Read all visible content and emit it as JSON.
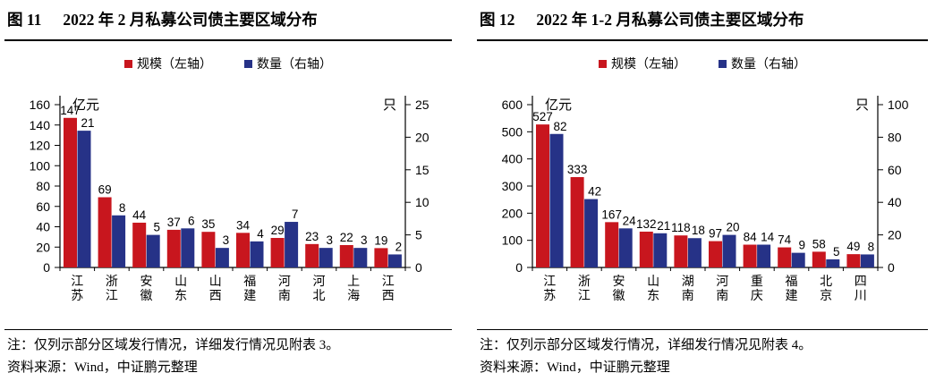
{
  "chart_data": [
    {
      "type": "bar",
      "fig_label": "图 11",
      "title": "2022 年 2 月私募公司债主要区域分布",
      "categories": [
        "江苏",
        "浙江",
        "安徽",
        "山东",
        "山西",
        "福建",
        "河南",
        "河北",
        "上海",
        "江西"
      ],
      "series": [
        {
          "name": "规模（左轴）",
          "axis": "left",
          "color": "#c8161e",
          "values": [
            147,
            69,
            44,
            37,
            35,
            34,
            29,
            23,
            22,
            19
          ]
        },
        {
          "name": "数量（右轴）",
          "axis": "right",
          "color": "#263287",
          "values": [
            21,
            8,
            5,
            6,
            3,
            4,
            7,
            3,
            3,
            2
          ]
        }
      ],
      "left_axis": {
        "unit": "亿元",
        "max": 160,
        "min": 0,
        "ticks": [
          0,
          20,
          40,
          60,
          80,
          100,
          120,
          140,
          160
        ]
      },
      "right_axis": {
        "unit": "只",
        "max": 25,
        "min": 0,
        "ticks": [
          0,
          5,
          10,
          15,
          20,
          25
        ]
      },
      "legend_position": "top-center",
      "grid": "off",
      "note": "注：仅列示部分区域发行情况，详细发行情况见附表 3。",
      "source": "资料来源：Wind，中证鹏元整理"
    },
    {
      "type": "bar",
      "fig_label": "图 12",
      "title": "2022 年 1-2 月私募公司债主要区域分布",
      "categories": [
        "江苏",
        "浙江",
        "安徽",
        "山东",
        "湖南",
        "河南",
        "重庆",
        "福建",
        "北京",
        "四川"
      ],
      "series": [
        {
          "name": "规模（左轴）",
          "axis": "left",
          "color": "#c8161e",
          "values": [
            527,
            333,
            167,
            132,
            118,
            97,
            84,
            74,
            58,
            49
          ]
        },
        {
          "name": "数量（右轴）",
          "axis": "right",
          "color": "#263287",
          "values": [
            82,
            42,
            24,
            21,
            18,
            20,
            14,
            9,
            5,
            8
          ]
        }
      ],
      "left_axis": {
        "unit": "亿元",
        "max": 600,
        "min": 0,
        "ticks": [
          0,
          100,
          200,
          300,
          400,
          500,
          600
        ]
      },
      "right_axis": {
        "unit": "只",
        "max": 100,
        "min": 0,
        "ticks": [
          0,
          20,
          40,
          60,
          80,
          100
        ]
      },
      "legend_position": "top-center",
      "grid": "off",
      "note": "注：仅列示部分区域发行情况，详细发行情况见附表 4。",
      "source": "资料来源：Wind，中证鹏元整理"
    }
  ],
  "colors": {
    "scale_red": "#c8161e",
    "count_blue": "#263287",
    "text": "#000000"
  }
}
